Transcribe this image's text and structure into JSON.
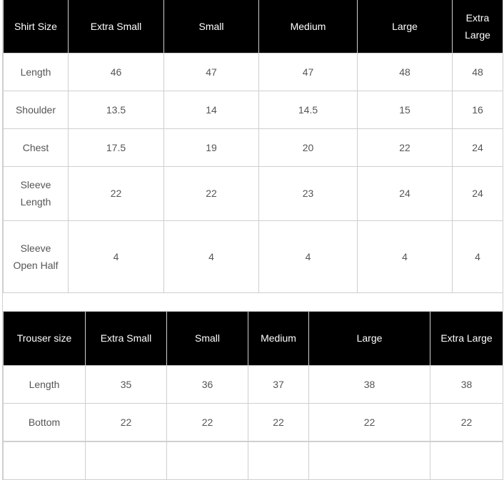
{
  "shirt_table": {
    "headers": [
      "Shirt Size",
      "Extra Small",
      "Small",
      "Medium",
      "Large",
      "Extra Large"
    ],
    "rows": [
      [
        "Length",
        "46",
        "47",
        "47",
        "48",
        "48"
      ],
      [
        "Shoulder",
        "13.5",
        "14",
        "14.5",
        "15",
        "16"
      ],
      [
        "Chest",
        "17.5",
        "19",
        "20",
        "22",
        "24"
      ],
      [
        "Sleeve Length",
        "22",
        "22",
        "23",
        "24",
        "24"
      ],
      [
        "Sleeve Open Half",
        "4",
        "4",
        "4",
        "4",
        "4"
      ]
    ]
  },
  "trouser_table": {
    "headers": [
      "Trouser size",
      "Extra Small",
      "Small",
      "Medium",
      "Large",
      "Extra Large"
    ],
    "rows": [
      [
        "Length",
        "35",
        "36",
        "37",
        "38",
        "38"
      ],
      [
        "Bottom",
        "22",
        "22",
        "22",
        "22",
        "22"
      ]
    ]
  }
}
